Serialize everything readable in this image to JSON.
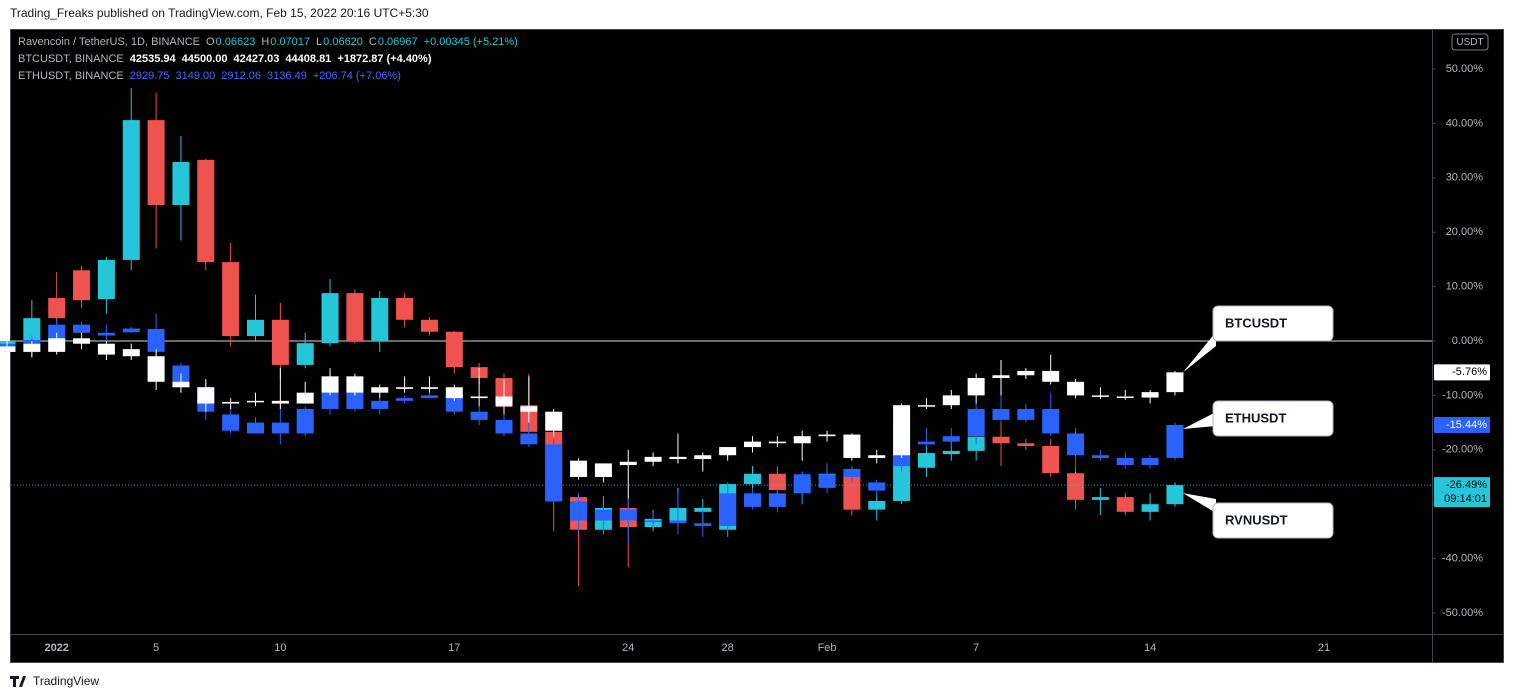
{
  "header": "Trading_Freaks published on TradingView.com, Feb 15, 2022 20:16 UTC+5:30",
  "footer": "TradingView",
  "chart_data": {
    "type": "candlestick",
    "currency": "USDT",
    "countdown": "09:14:01",
    "legend": [
      {
        "symbol": "Ravencoin / TetherUS, 1D, BINANCE",
        "keys": [
          "O",
          "H",
          "L",
          "C"
        ],
        "values": [
          "0.06623",
          "0.07017",
          "0.06620",
          "0.06967"
        ],
        "change": "+0.00345 (+5.21%)"
      },
      {
        "symbol": "BTCUSDT, BINANCE",
        "values": [
          "42535.94",
          "44500.00",
          "42427.03",
          "44408.81"
        ],
        "change": "+1872.87 (+4.40%)"
      },
      {
        "symbol": "ETHUSDT, BINANCE",
        "values": [
          "2929.75",
          "3149.00",
          "2912.06",
          "3136.49"
        ],
        "change": "+206.74 (+7.06%)"
      }
    ],
    "categories": [
      null,
      null,
      "2022",
      null,
      null,
      null,
      "5",
      null,
      null,
      null,
      null,
      "10",
      null,
      null,
      null,
      null,
      null,
      null,
      "17",
      null,
      null,
      null,
      null,
      null,
      null,
      "24",
      null,
      null,
      null,
      "28",
      null,
      null,
      null,
      "Feb",
      null,
      null,
      null,
      null,
      null,
      "7",
      null,
      null,
      null,
      null,
      null,
      null,
      "14",
      null,
      null,
      null,
      null,
      null,
      null,
      "21",
      null,
      null,
      null
    ],
    "ylim": [
      -53.86,
      57.35
    ],
    "yticks": [
      {
        "value": 50,
        "label": "50.00%"
      },
      {
        "value": 40,
        "label": "40.00%"
      },
      {
        "value": 30,
        "label": "30.00%"
      },
      {
        "value": 20,
        "label": "20.00%"
      },
      {
        "value": 10,
        "label": "10.00%"
      },
      {
        "value": 0,
        "label": "0.00%"
      },
      {
        "value": -10,
        "label": "-10.00%"
      },
      {
        "value": -20,
        "label": "-20.00%"
      },
      {
        "value": -30,
        "label": "-30.00%"
      },
      {
        "value": -40,
        "label": "-40.00%"
      },
      {
        "value": -50,
        "label": "-50.00%"
      }
    ],
    "baseline": 0,
    "annotations": [
      "BTCUSDT",
      "ETHUSDT",
      "RVNUSDT"
    ],
    "series": [
      {
        "name": "RVNUSDT",
        "color_up": "#26c6da",
        "color_down": "#ef5350",
        "text_color": "#000000",
        "last_label": "-26.49%",
        "ohlc": [
          [
            -2,
            0,
            -2,
            0
          ],
          [
            0,
            7.5,
            -3,
            4.2
          ],
          [
            7.9,
            12.7,
            2,
            4.2
          ],
          [
            13,
            13.8,
            6,
            7.5
          ],
          [
            7.7,
            15.5,
            5,
            14.9
          ],
          [
            14.9,
            46.5,
            13,
            40.6
          ],
          [
            40.6,
            45.6,
            17,
            25
          ],
          [
            25,
            37.7,
            18.5,
            32.9
          ],
          [
            33.3,
            33.5,
            13,
            14.5
          ],
          [
            14.5,
            18,
            -1,
            0.9
          ],
          [
            0.9,
            8.5,
            0,
            3.9
          ],
          [
            3.9,
            7,
            -7,
            -4.4
          ],
          [
            -4.4,
            1.5,
            -5,
            -0.4
          ],
          [
            -0.4,
            11.4,
            -1,
            8.8
          ],
          [
            8.8,
            9.5,
            -0.5,
            0
          ],
          [
            0,
            9.2,
            -2,
            7.9
          ],
          [
            7.9,
            8.8,
            2.5,
            3.9
          ],
          [
            3.9,
            4.4,
            1,
            1.7
          ],
          [
            1.7,
            1.8,
            -6,
            -4.8
          ],
          [
            -4.8,
            -4,
            -8,
            -6.8
          ],
          [
            -6.8,
            -6,
            -13,
            -12.1
          ],
          [
            -11.8,
            -6,
            -18,
            -16.7
          ],
          [
            -16.7,
            -16,
            -35,
            -29.2
          ],
          [
            -28.7,
            -28,
            -45,
            -34.7
          ],
          [
            -34.7,
            -28.5,
            -35.5,
            -30.7
          ],
          [
            -30.7,
            -29,
            -41.6,
            -34.2
          ],
          [
            -34.2,
            -31,
            -35,
            -32.7
          ],
          [
            -33,
            -27,
            -34,
            -30.7
          ],
          [
            -31.4,
            -29,
            -34,
            -30.7
          ],
          [
            -34.7,
            -26,
            -36,
            -26.3
          ],
          [
            -26.3,
            -23,
            -28,
            -24.4
          ],
          [
            -24.4,
            -23,
            -29,
            -27.4
          ],
          [
            -27.4,
            -24,
            -30,
            -25.6
          ],
          [
            -25.6,
            -23,
            -27,
            -24.4
          ],
          [
            -24.4,
            -23,
            -32,
            -31
          ],
          [
            -31,
            -28,
            -33,
            -29.4
          ],
          [
            -29.4,
            -20,
            -30,
            -21
          ],
          [
            -23.3,
            -19,
            -25,
            -20.6
          ],
          [
            -20.8,
            -18,
            -22,
            -20.2
          ],
          [
            -20.2,
            -16,
            -22,
            -17.6
          ],
          [
            -17.6,
            -15,
            -23,
            -18.8
          ],
          [
            -18.8,
            -18,
            -20,
            -19.3
          ],
          [
            -19.3,
            -18,
            -25,
            -24.3
          ],
          [
            -24.3,
            -23,
            -31,
            -29.2
          ],
          [
            -29.2,
            -27,
            -32,
            -28.7
          ],
          [
            -28.7,
            -28,
            -32,
            -31.4
          ],
          [
            -31.4,
            -28,
            -33,
            -30
          ],
          [
            -30,
            -26,
            -30.5,
            -26.49
          ],
          null,
          null,
          null,
          null,
          null,
          null,
          null,
          null,
          null
        ]
      },
      {
        "name": "ETHUSDT",
        "color_up": "#2962ff",
        "color_down": "#2962ff",
        "text_color": "#ffffff",
        "last_label": "-15.44%",
        "ohlc": [
          [
            -1,
            0,
            -2,
            -0.5
          ],
          [
            -0.5,
            1,
            -2,
            0.2
          ],
          [
            0.2,
            4,
            -0.5,
            3
          ],
          [
            3,
            3.5,
            1.5,
            1.5
          ],
          [
            1.5,
            3,
            0,
            1
          ],
          [
            2.3,
            2.6,
            1.5,
            1.6
          ],
          [
            2.2,
            5,
            -3,
            -2
          ],
          [
            -4.5,
            -4,
            -9.5,
            -8.5
          ],
          [
            -8.5,
            -7.5,
            -14.5,
            -13
          ],
          [
            -13.5,
            -12,
            -17,
            -16.5
          ],
          [
            -15,
            -14,
            -17,
            -17
          ],
          [
            -15,
            -12,
            -19,
            -17
          ],
          [
            -17,
            -12,
            -17.5,
            -12.5
          ],
          [
            -12.5,
            -9,
            -13.5,
            -9.5
          ],
          [
            -9.5,
            -9,
            -13,
            -12.5
          ],
          [
            -12.5,
            -10.5,
            -13.5,
            -11
          ],
          [
            -11,
            -10,
            -11.5,
            -10.5
          ],
          [
            -10.5,
            -9.5,
            -10.5,
            -10
          ],
          [
            -10,
            -9.5,
            -13.5,
            -13
          ],
          [
            -13,
            -12,
            -15.5,
            -14.5
          ],
          [
            -14.5,
            -13,
            -17.5,
            -17
          ],
          [
            -17,
            -12.5,
            -19.5,
            -19
          ],
          [
            -19,
            -18,
            -30.5,
            -29.5
          ],
          [
            -29.5,
            -28,
            -35,
            -33
          ],
          [
            -33,
            -30,
            -35,
            -31
          ],
          [
            -31,
            -29,
            -37,
            -33
          ],
          [
            -33,
            -31.5,
            -34,
            -33
          ],
          [
            -33,
            -28,
            -35.5,
            -33.5
          ],
          [
            -33.5,
            -31,
            -36,
            -34
          ],
          [
            -34,
            -26,
            -36,
            -28
          ],
          [
            -28,
            -27,
            -31,
            -30.5
          ],
          [
            -30.5,
            -27,
            -31.5,
            -28
          ],
          [
            -28,
            -24,
            -30,
            -24.5
          ],
          [
            -24.5,
            -22.5,
            -28,
            -27
          ],
          [
            -25,
            -23,
            -26,
            -23.5
          ],
          [
            -27.5,
            -25.5,
            -28.5,
            -26
          ],
          [
            -23,
            -16,
            -24,
            -16.5
          ],
          [
            -18.5,
            -16,
            -19.5,
            -19
          ],
          [
            -18.5,
            -16,
            -19.5,
            -17.5
          ],
          [
            -17.5,
            -11.5,
            -19,
            -12.5
          ],
          [
            -12.5,
            -10,
            -15,
            -14.5
          ],
          [
            -14.5,
            -11.5,
            -15,
            -12.5
          ],
          [
            -12.5,
            -9.5,
            -17.5,
            -17
          ],
          [
            -17,
            -16,
            -23.5,
            -21
          ],
          [
            -21,
            -20,
            -22,
            -21.5
          ],
          [
            -21.5,
            -20.5,
            -23.5,
            -22.8
          ],
          [
            -22.8,
            -21,
            -23.5,
            -21.5
          ],
          [
            -21.5,
            -15,
            -22,
            -15.44
          ],
          null,
          null,
          null,
          null,
          null,
          null,
          null,
          null,
          null
        ]
      },
      {
        "name": "BTCUSDT",
        "color_up": "#ffffff",
        "color_down": "#ffffff",
        "text_color": "#000000",
        "last_label": "-5.76%",
        "ohlc": [
          [
            -2,
            0,
            -3,
            -1
          ],
          [
            -0.5,
            0,
            -3,
            -2
          ],
          [
            -2,
            1.5,
            -2.5,
            0.5
          ],
          [
            0.5,
            1.5,
            -1.5,
            -0.5
          ],
          [
            -0.5,
            0,
            -3.5,
            -2.5
          ],
          [
            -1.5,
            -0.5,
            -3.5,
            -2.8
          ],
          [
            -2.8,
            -1.5,
            -9,
            -7.5
          ],
          [
            -7.5,
            -6,
            -9.5,
            -8.5
          ],
          [
            -8.5,
            -7,
            -13,
            -11.5
          ],
          [
            -11.5,
            -10.5,
            -12.5,
            -11.2
          ],
          [
            -11.2,
            -9.5,
            -12,
            -11
          ],
          [
            -11,
            -5,
            -12.5,
            -11.5
          ],
          [
            -11.5,
            -7.5,
            -11.5,
            -9.5
          ],
          [
            -9.5,
            -5,
            -10,
            -6.5
          ],
          [
            -6.5,
            -6,
            -10,
            -9.5
          ],
          [
            -9.5,
            -8,
            -10.5,
            -8.5
          ],
          [
            -8.5,
            -6.5,
            -9.5,
            -8.8
          ],
          [
            -8.8,
            -6.5,
            -9.5,
            -8.5
          ],
          [
            -8.5,
            -8,
            -11,
            -10.5
          ],
          [
            -10.5,
            -5,
            -12,
            -10.2
          ],
          [
            -10.2,
            -7,
            -13.5,
            -12
          ],
          [
            -12,
            -6.5,
            -15,
            -13
          ],
          [
            -13,
            -12.5,
            -17.5,
            -16.5
          ],
          [
            -22,
            -21.5,
            -25.5,
            -25
          ],
          [
            -25,
            -22.5,
            -26,
            -22.5
          ],
          [
            -22.8,
            -20,
            -29,
            -22.2
          ],
          [
            -22.2,
            -20.5,
            -23,
            -21.3
          ],
          [
            -21.3,
            -17,
            -22.5,
            -21.7
          ],
          [
            -21.7,
            -20.5,
            -24,
            -21
          ],
          [
            -21,
            -19.5,
            -22,
            -19.5
          ],
          [
            -19.5,
            -17.5,
            -20.5,
            -18.5
          ],
          [
            -18.5,
            -17.5,
            -19.5,
            -18.8
          ],
          [
            -18.8,
            -16.5,
            -22,
            -17.5
          ],
          [
            -17.5,
            -16.5,
            -18.5,
            -17.2
          ],
          [
            -17.2,
            -17,
            -22,
            -21.5
          ],
          [
            -21.5,
            -20,
            -22.5,
            -21
          ],
          [
            -21,
            -11.5,
            -21.5,
            -11.8
          ],
          [
            -11.8,
            -10.5,
            -12.5,
            -11.8
          ],
          [
            -11.8,
            -9,
            -12.5,
            -10
          ],
          [
            -10,
            -6,
            -11.5,
            -6.8
          ],
          [
            -6.8,
            -3.5,
            -10,
            -6.3
          ],
          [
            -6.3,
            -5,
            -7,
            -5.5
          ],
          [
            -5.5,
            -2.5,
            -8,
            -7.5
          ],
          [
            -7.5,
            -7,
            -10.5,
            -10
          ],
          [
            -10,
            -8.5,
            -10.7,
            -10.2
          ],
          [
            -10.2,
            -9,
            -10.8,
            -10.4
          ],
          [
            -10.4,
            -9,
            -11.5,
            -9.4
          ],
          [
            -9.4,
            -5.5,
            -10,
            -5.76
          ],
          null,
          null,
          null,
          null,
          null,
          null,
          null,
          null,
          null
        ]
      }
    ]
  }
}
